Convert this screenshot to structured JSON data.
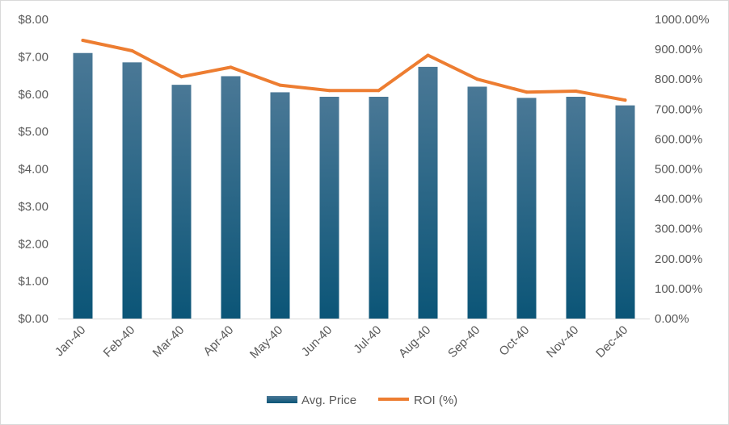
{
  "chart_data": {
    "type": "bar+line",
    "title": "",
    "xlabel": "",
    "ylabel": "",
    "categories": [
      "Jan-40",
      "Feb-40",
      "Mar-40",
      "Apr-40",
      "May-40",
      "Jun-40",
      "Jul-40",
      "Aug-40",
      "Sep-40",
      "Oct-40",
      "Nov-40",
      "Dec-40"
    ],
    "series": [
      {
        "name": "Avg. Price",
        "type": "bar",
        "axis": "left",
        "color_top": "#4a7896",
        "color_bottom": "#0b5577",
        "values": [
          7.1,
          6.85,
          6.25,
          6.48,
          6.05,
          5.93,
          5.93,
          6.73,
          6.2,
          5.9,
          5.93,
          5.7
        ]
      },
      {
        "name": "ROI (%)",
        "type": "line",
        "axis": "right",
        "color": "#ed7d31",
        "values": [
          930,
          895,
          808,
          840,
          780,
          762,
          762,
          880,
          800,
          757,
          760,
          730
        ]
      }
    ],
    "y_left": {
      "min": 0,
      "max": 8,
      "step": 1,
      "tick_labels": [
        "$0.00",
        "$1.00",
        "$2.00",
        "$3.00",
        "$4.00",
        "$5.00",
        "$6.00",
        "$7.00",
        "$8.00"
      ]
    },
    "y_right": {
      "min": 0,
      "max": 1000,
      "step": 100,
      "tick_labels": [
        "0.00%",
        "100.00%",
        "200.00%",
        "300.00%",
        "400.00%",
        "500.00%",
        "600.00%",
        "700.00%",
        "800.00%",
        "900.00%",
        "1000.00%"
      ]
    },
    "grid": false,
    "legend_position": "bottom",
    "legend": [
      {
        "label": "Avg. Price",
        "kind": "bar"
      },
      {
        "label": "ROI (%)",
        "kind": "line"
      }
    ]
  }
}
